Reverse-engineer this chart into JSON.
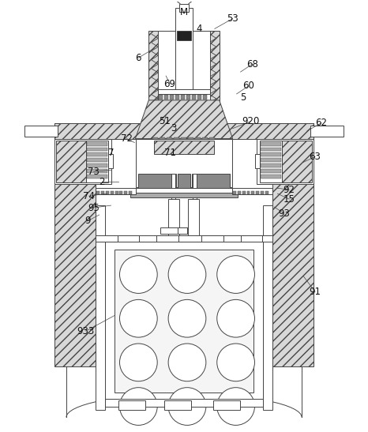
{
  "bg_color": "#ffffff",
  "lc": "#444444",
  "hatch_fc": "#d8d8d8",
  "gray_dark": "#888888",
  "gray_mid": "#aaaaaa",
  "gray_light": "#cccccc",
  "labels": [
    [
      "M",
      233,
      14
    ],
    [
      "4",
      252,
      35
    ],
    [
      "53",
      295,
      22
    ],
    [
      "6",
      175,
      72
    ],
    [
      "68",
      320,
      80
    ],
    [
      "69",
      215,
      105
    ],
    [
      "60",
      315,
      108
    ],
    [
      "5",
      308,
      123
    ],
    [
      "51",
      208,
      153
    ],
    [
      "3",
      220,
      162
    ],
    [
      "920",
      318,
      153
    ],
    [
      "62",
      408,
      155
    ],
    [
      "72",
      160,
      175
    ],
    [
      "71",
      215,
      193
    ],
    [
      "7",
      140,
      193
    ],
    [
      "63",
      400,
      198
    ],
    [
      "73",
      118,
      217
    ],
    [
      "2",
      128,
      230
    ],
    [
      "74",
      112,
      248
    ],
    [
      "92",
      367,
      240
    ],
    [
      "15",
      367,
      252
    ],
    [
      "95",
      118,
      263
    ],
    [
      "93",
      360,
      270
    ],
    [
      "9",
      110,
      280
    ],
    [
      "91",
      400,
      370
    ],
    [
      "933",
      108,
      420
    ]
  ]
}
